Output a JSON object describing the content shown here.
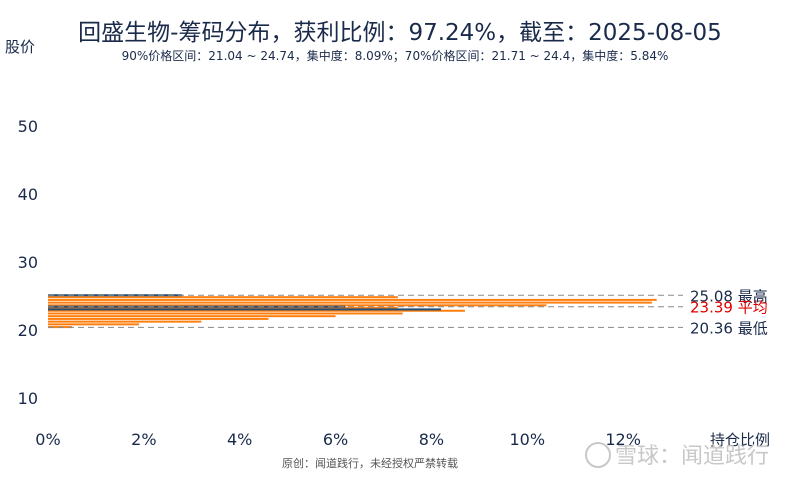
{
  "chart_data": {
    "type": "bar",
    "orientation": "horizontal",
    "title": "回盛生物-筹码分布，获利比例：97.24%，截至：2025-08-05",
    "subtitle": "90%价格区间：21.04 ~ 24.74，集中度：8.09%；70%价格区间：21.71 ~ 24.4，集中度：5.84%",
    "ylabel": "股价",
    "xlabel": "持仓比例",
    "xlim": [
      0,
      13.5
    ],
    "ylim": [
      6,
      56
    ],
    "x_ticks": [
      "0%",
      "2%",
      "4%",
      "6%",
      "8%",
      "10%",
      "12%"
    ],
    "x_tick_values": [
      0,
      2,
      4,
      6,
      8,
      10,
      12
    ],
    "y_ticks": [
      "10",
      "20",
      "30",
      "40",
      "50"
    ],
    "y_tick_values": [
      10,
      20,
      30,
      40,
      50
    ],
    "series": [
      {
        "color": "#ff7f0e",
        "price": [
          20.4,
          20.8,
          21.2,
          21.6,
          22.0,
          22.4,
          22.8,
          23.2,
          23.6,
          24.0,
          24.4,
          24.8
        ],
        "values": [
          0.5,
          1.9,
          3.2,
          4.6,
          6.0,
          7.4,
          8.7,
          7.3,
          10.4,
          12.6,
          12.7,
          7.3
        ]
      },
      {
        "color": "#1f4e79",
        "price": [
          23.0,
          23.4,
          25.08
        ],
        "values": [
          8.2,
          6.2,
          2.8
        ]
      }
    ],
    "reference_lines": [
      {
        "value": 25.08,
        "label": "25.08 最高",
        "color": "#1a2a4a"
      },
      {
        "value": 23.39,
        "label": "23.39 平均",
        "color": "#e00000"
      },
      {
        "value": 20.36,
        "label": "20.36 最低",
        "color": "#1a2a4a"
      }
    ],
    "grid": false,
    "legend": "none"
  },
  "footer": "原创：闻道践行，未经授权严禁转载",
  "watermark": "雪球：闻道践行"
}
